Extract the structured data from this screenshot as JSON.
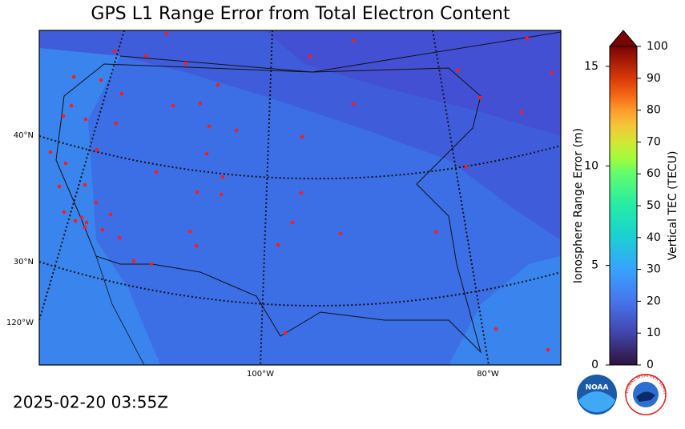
{
  "title": "GPS L1 Range Error from Total Electron Content",
  "timestamp": "2025-02-20 03:55Z",
  "map": {
    "lat_labels": [
      "40°N",
      "30°N"
    ],
    "lon_labels": [
      "120°W",
      "100°W",
      "80°W"
    ]
  },
  "colorbar": {
    "left_label": "Ionosphere Range Error (m)",
    "left_lim": [
      0,
      16
    ],
    "left_ticks": [
      0,
      5,
      10,
      15
    ],
    "right_label": "Vertical TEC (TECU)",
    "right_lim": [
      0,
      100
    ],
    "right_ticks": [
      0,
      10,
      20,
      30,
      40,
      50,
      60,
      70,
      80,
      90,
      100
    ]
  },
  "logos": {
    "noaa": "NOAA",
    "nws": "NATIONAL WEATHER SERVICE"
  }
}
